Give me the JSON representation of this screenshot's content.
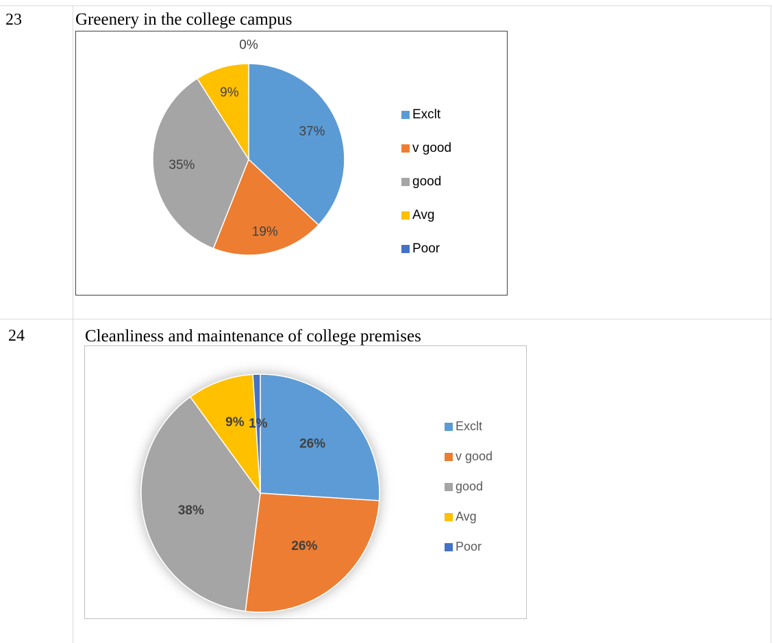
{
  "rows": [
    {
      "number": "23",
      "title": "Greenery in the college campus"
    },
    {
      "number": "24",
      "title": "Cleanliness and maintenance of college premises"
    }
  ],
  "chart_data": [
    {
      "type": "pie",
      "title": "",
      "categories": [
        "Exclt",
        "v good",
        "good",
        "Avg",
        "Poor"
      ],
      "values": [
        37,
        19,
        35,
        9,
        0
      ],
      "data_labels": [
        "37%",
        "19%",
        "35%",
        "9%",
        "0%"
      ],
      "colors": [
        "#5b9bd5",
        "#ed7d31",
        "#a5a5a5",
        "#ffc000",
        "#4472c4"
      ],
      "legend_position": "right"
    },
    {
      "type": "pie",
      "title": "",
      "categories": [
        "Exclt",
        "v good",
        "good",
        "Avg",
        "Poor"
      ],
      "values": [
        26,
        26,
        38,
        9,
        1
      ],
      "data_labels": [
        "26%",
        "26%",
        "38%",
        "9%",
        "1%"
      ],
      "colors": [
        "#5b9bd5",
        "#ed7d31",
        "#a5a5a5",
        "#ffc000",
        "#4472c4"
      ],
      "legend_position": "right"
    }
  ]
}
